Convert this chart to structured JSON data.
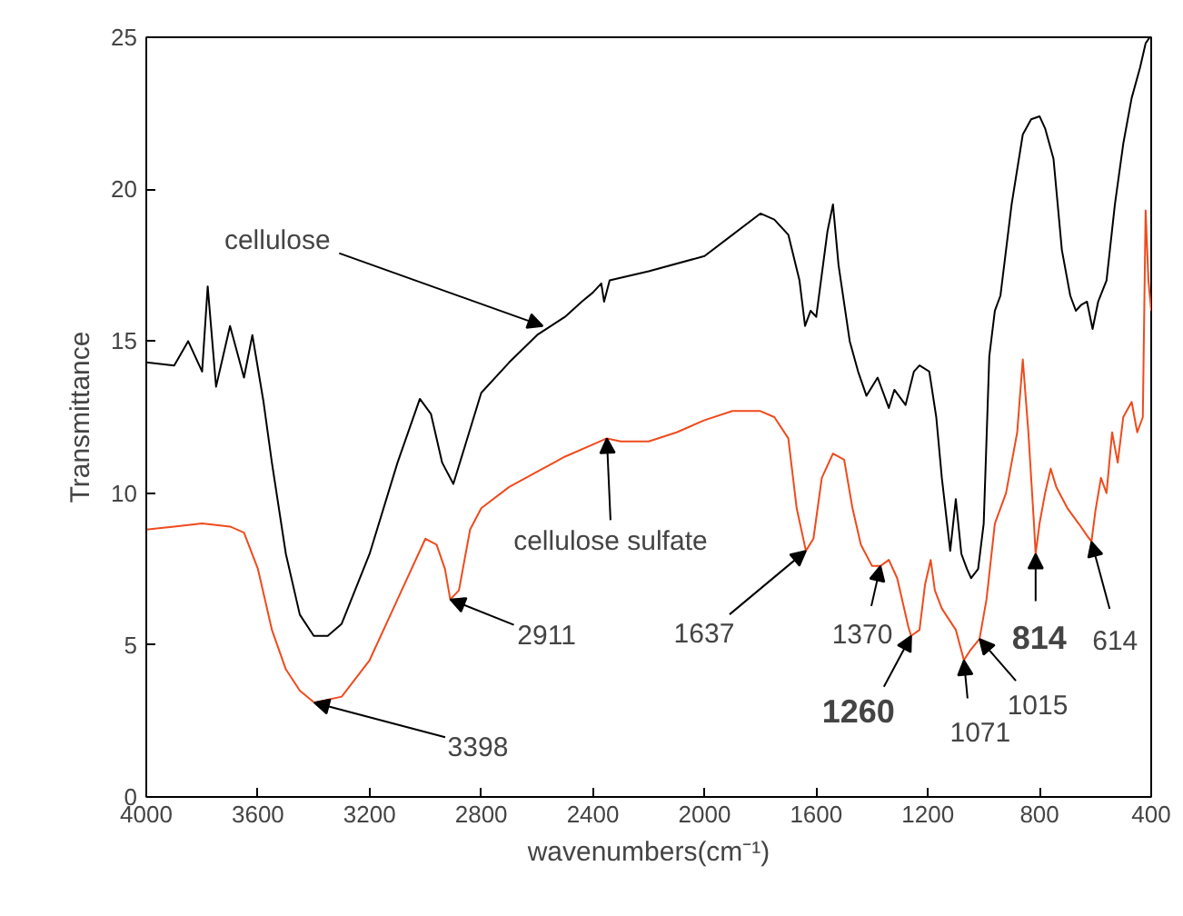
{
  "chart_data": {
    "type": "line",
    "xlabel": "wavenumbers(cm⁻¹)",
    "ylabel": "Transmittance",
    "xlim": [
      4000,
      400
    ],
    "ylim": [
      0,
      25
    ],
    "xticks": [
      4000,
      3600,
      3200,
      2800,
      2400,
      2000,
      1600,
      1200,
      800,
      400
    ],
    "yticks": [
      0,
      5,
      10,
      15,
      20,
      25
    ],
    "series": [
      {
        "color": "#000000",
        "x": [
          4000,
          3900,
          3850,
          3800,
          3780,
          3750,
          3700,
          3650,
          3620,
          3580,
          3550,
          3500,
          3450,
          3400,
          3350,
          3300,
          3200,
          3100,
          3020,
          2980,
          2940,
          2900,
          2860,
          2800,
          2700,
          2600,
          2500,
          2440,
          2400,
          2370,
          2360,
          2340,
          2200,
          2000,
          1900,
          1800,
          1750,
          1700,
          1660,
          1640,
          1620,
          1600,
          1560,
          1540,
          1520,
          1480,
          1450,
          1420,
          1380,
          1340,
          1320,
          1280,
          1250,
          1230,
          1195,
          1170,
          1150,
          1120,
          1100,
          1080,
          1060,
          1045,
          1020,
          1000,
          980,
          960,
          940,
          900,
          860,
          830,
          800,
          780,
          750,
          720,
          690,
          670,
          650,
          630,
          610,
          590,
          560,
          530,
          500,
          470,
          440,
          420,
          405
        ],
        "values": [
          14.3,
          14.2,
          15,
          14,
          16.8,
          13.5,
          15.5,
          13.8,
          15.2,
          13,
          11,
          8,
          6,
          5.3,
          5.3,
          5.7,
          8,
          11,
          13.1,
          12.6,
          11,
          10.3,
          11.5,
          13.3,
          14.3,
          15.2,
          15.8,
          16.3,
          16.6,
          16.9,
          16.3,
          17.0,
          17.3,
          17.8,
          18.5,
          19.2,
          19.0,
          18.5,
          17,
          15.5,
          16,
          15.8,
          18.6,
          19.5,
          17.5,
          15,
          14,
          13.2,
          13.8,
          12.8,
          13.4,
          12.9,
          14,
          14.2,
          14.0,
          12.5,
          10.5,
          8.1,
          9.8,
          8,
          7.5,
          7.2,
          7.5,
          9,
          14.5,
          16,
          16.5,
          19.5,
          21.8,
          22.3,
          22.4,
          22,
          21,
          18,
          16.5,
          16.0,
          16.2,
          16.3,
          15.4,
          16.3,
          17,
          19.5,
          21.5,
          23,
          24,
          24.8,
          25
        ]
      },
      {
        "color": "#f04a1c",
        "x": [
          4000,
          3900,
          3800,
          3700,
          3650,
          3600,
          3550,
          3500,
          3450,
          3398,
          3300,
          3200,
          3100,
          3000,
          2960,
          2930,
          2911,
          2880,
          2840,
          2800,
          2700,
          2600,
          2500,
          2400,
          2350,
          2300,
          2200,
          2100,
          2000,
          1900,
          1800,
          1750,
          1700,
          1670,
          1637,
          1610,
          1580,
          1540,
          1500,
          1470,
          1440,
          1400,
          1370,
          1340,
          1310,
          1270,
          1260,
          1230,
          1210,
          1190,
          1175,
          1150,
          1100,
          1071,
          1050,
          1015,
          990,
          960,
          920,
          900,
          880,
          860,
          840,
          820,
          814,
          800,
          780,
          760,
          740,
          700,
          660,
          630,
          614,
          600,
          580,
          560,
          540,
          520,
          500,
          470,
          450,
          430,
          420,
          410,
          400
        ],
        "values": [
          8.8,
          8.9,
          9.0,
          8.9,
          8.7,
          7.5,
          5.5,
          4.2,
          3.5,
          3.1,
          3.3,
          4.5,
          6.5,
          8.5,
          8.3,
          7.5,
          6.5,
          6.8,
          8.8,
          9.5,
          10.2,
          10.7,
          11.2,
          11.6,
          11.8,
          11.7,
          11.7,
          12.0,
          12.4,
          12.7,
          12.7,
          12.5,
          11.8,
          9.5,
          8.1,
          8.5,
          10.5,
          11.3,
          11.1,
          9.5,
          8.3,
          7.6,
          7.6,
          7.8,
          7.2,
          5.6,
          5.3,
          5.5,
          7.0,
          7.8,
          6.8,
          6.2,
          5.5,
          4.5,
          4.8,
          5.2,
          6.5,
          9,
          10,
          11,
          12,
          14.4,
          12,
          9,
          8,
          9,
          10,
          10.8,
          10.2,
          9.5,
          9.0,
          8.6,
          8.4,
          9.4,
          10.5,
          10.0,
          12,
          11,
          12.5,
          13,
          12,
          12.5,
          19.3,
          17,
          16
        ]
      }
    ],
    "annotations": [
      {
        "text": "cellulose",
        "x": 2580,
        "y": 15.5
      },
      {
        "text": "cellulose sulfate",
        "x": 2350,
        "y": 11.8
      },
      {
        "text": "3398",
        "x": 3398,
        "y": 3.1
      },
      {
        "text": "2911",
        "x": 2911,
        "y": 6.5
      },
      {
        "text": "1637",
        "x": 1637,
        "y": 8.1
      },
      {
        "text": "1370",
        "x": 1370,
        "y": 7.6
      },
      {
        "text": "1260",
        "x": 1260,
        "y": 5.3
      },
      {
        "text": "1071",
        "x": 1071,
        "y": 4.5
      },
      {
        "text": "1015",
        "x": 1015,
        "y": 5.2
      },
      {
        "text": "814",
        "x": 814,
        "y": 8
      },
      {
        "text": "614",
        "x": 614,
        "y": 8.4
      }
    ]
  }
}
